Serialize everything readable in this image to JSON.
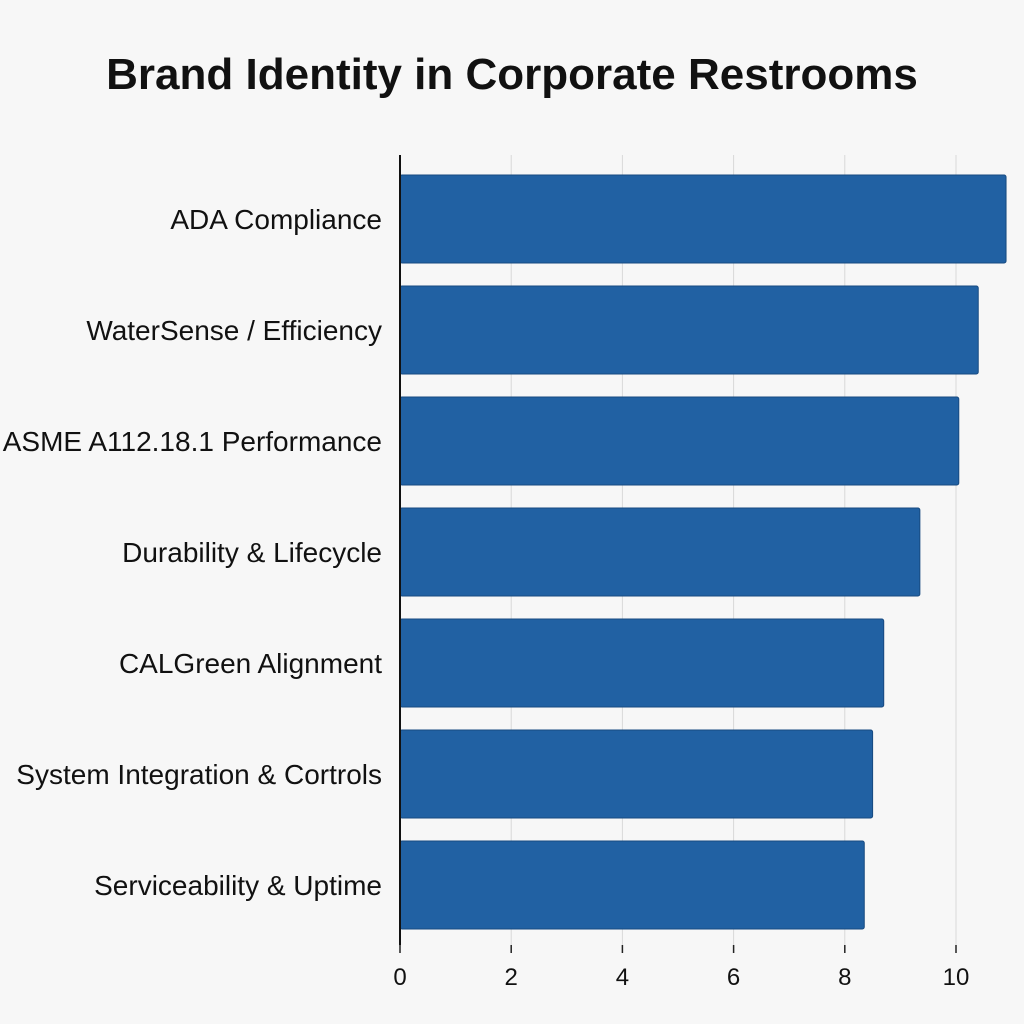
{
  "chart_data": {
    "type": "bar",
    "orientation": "horizontal",
    "title": "Brand Identity in Corporate Restrooms",
    "xlabel": "",
    "ylabel": "",
    "categories": [
      "ADA Compliance",
      "WaterSense / Efficiency",
      "ASME A112.18.1 Performance",
      "Durability & Lifecycle",
      "CALGreen Alignment",
      "System Integration & Cortrols",
      "Serviceability & Uptime"
    ],
    "values": [
      10.9,
      10.4,
      10.05,
      9.35,
      8.7,
      8.5,
      8.35
    ],
    "xlim": [
      0,
      11
    ],
    "xticks": [
      0,
      2,
      4,
      6,
      8,
      10
    ],
    "grid": "vertical",
    "bar_color": "#2161a3"
  }
}
